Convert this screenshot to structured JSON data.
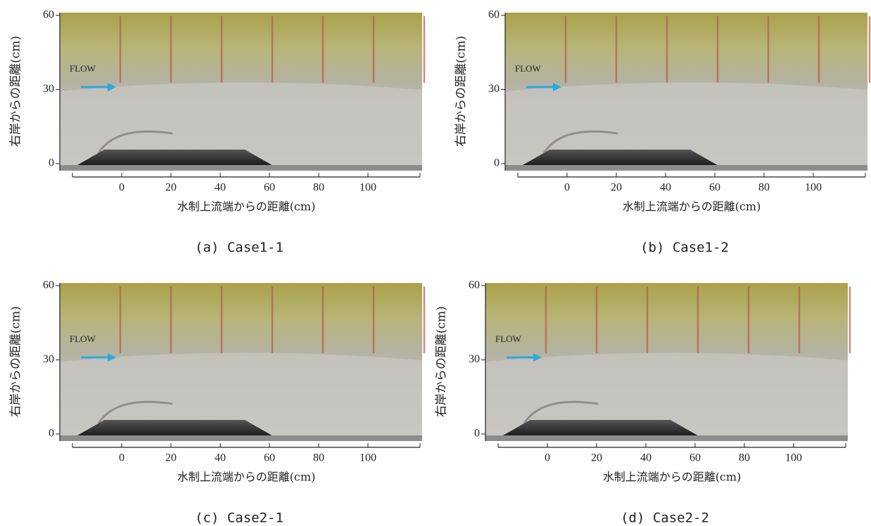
{
  "panels": [
    {
      "caption": "(a) Case1-1",
      "y_label": "右岸からの距離(cm)",
      "x_label": "水制上流端からの距離(cm)",
      "flow_label": "FLOW",
      "xticks": [
        0,
        20,
        40,
        60,
        80,
        100
      ],
      "yticks": [
        0,
        30,
        60
      ]
    },
    {
      "caption": "(b) Case1-2",
      "y_label": "右岸からの距離(cm)",
      "x_label": "水制上流端からの距離(cm)",
      "flow_label": "FLOW",
      "xticks": [
        0,
        20,
        40,
        60,
        80,
        100
      ],
      "yticks": [
        0,
        30,
        60
      ]
    },
    {
      "caption": "(c) Case2-1",
      "y_label": "右岸からの距離(cm)",
      "x_label": "水制上流端からの距離(cm)",
      "flow_label": "FLOW",
      "xticks": [
        0,
        20,
        40,
        60,
        80,
        100
      ],
      "yticks": [
        0,
        30,
        60
      ]
    },
    {
      "caption": "(d) Case2-2",
      "y_label": "右岸からの距離(cm)",
      "x_label": "水制上流端からの距離(cm)",
      "flow_label": "FLOW",
      "xticks": [
        0,
        20,
        40,
        60,
        80,
        100
      ],
      "yticks": [
        0,
        30,
        60
      ]
    }
  ]
}
